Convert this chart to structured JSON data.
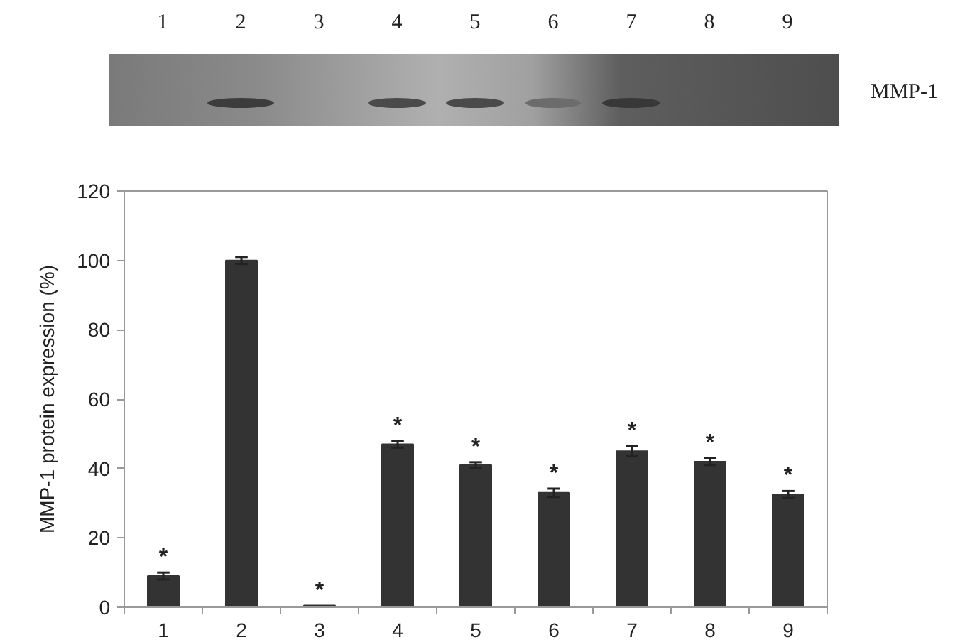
{
  "chart_data": {
    "type": "bar",
    "ylabel": "MMP-1 protein expression (%)",
    "categories": [
      "1",
      "2",
      "3",
      "4",
      "5",
      "6",
      "7",
      "8",
      "9"
    ],
    "values": [
      9,
      100,
      0.5,
      47,
      41,
      33,
      45,
      42,
      32.5
    ],
    "errors": [
      1,
      1,
      null,
      1,
      0.8,
      1.2,
      1.5,
      1,
      1
    ],
    "color": "#333333",
    "ylim": [
      0,
      120
    ],
    "yticks": [
      0,
      20,
      40,
      60,
      80,
      100,
      120
    ],
    "grid": false,
    "annotations": [
      "1",
      "2",
      "3",
      "4",
      "5",
      "6",
      "7",
      "8",
      "9",
      "MMP-1",
      {
        "text": "*",
        "x": "1",
        "y": 9
      },
      {
        "text": "*",
        "x": "3",
        "y": 0.5
      },
      {
        "text": "*",
        "x": "4",
        "y": 47
      },
      {
        "text": "*",
        "x": "5",
        "y": 41
      },
      {
        "text": "*",
        "x": "6",
        "y": 33
      },
      {
        "text": "*",
        "x": "7",
        "y": 45
      },
      {
        "text": "*",
        "x": "8",
        "y": 42
      },
      {
        "text": "*",
        "x": "9",
        "y": 32.5
      }
    ]
  }
}
